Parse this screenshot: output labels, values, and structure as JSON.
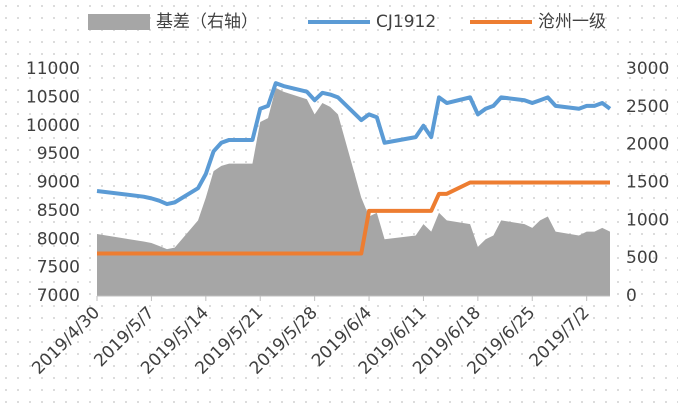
{
  "chart_data": {
    "type": "line",
    "x": [
      "2019/4/30",
      "2019/5/6",
      "2019/5/7",
      "2019/5/8",
      "2019/5/9",
      "2019/5/10",
      "2019/5/13",
      "2019/5/14",
      "2019/5/15",
      "2019/5/16",
      "2019/5/17",
      "2019/5/20",
      "2019/5/21",
      "2019/5/22",
      "2019/5/23",
      "2019/5/24",
      "2019/5/27",
      "2019/5/28",
      "2019/5/29",
      "2019/5/30",
      "2019/5/31",
      "2019/6/3",
      "2019/6/4",
      "2019/6/5",
      "2019/6/6",
      "2019/6/10",
      "2019/6/11",
      "2019/6/12",
      "2019/6/13",
      "2019/6/14",
      "2019/6/17",
      "2019/6/18",
      "2019/6/19",
      "2019/6/20",
      "2019/6/21",
      "2019/6/24",
      "2019/6/25",
      "2019/6/26",
      "2019/6/27",
      "2019/6/28",
      "2019/7/1",
      "2019/7/2",
      "2019/7/3",
      "2019/7/4",
      "2019/7/5"
    ],
    "series": [
      {
        "name": "基差（右轴）",
        "color": "#a6a6a6",
        "kind": "area",
        "axis": "y2",
        "values": [
          820,
          720,
          700,
          660,
          620,
          640,
          1000,
          1300,
          1650,
          1720,
          1750,
          1750,
          2300,
          2350,
          2750,
          2700,
          2600,
          2400,
          2550,
          2500,
          2400,
          1300,
          1050,
          1100,
          750,
          800,
          950,
          850,
          1100,
          1000,
          950,
          650,
          750,
          800,
          1000,
          950,
          900,
          1000,
          1050,
          850,
          800,
          850,
          850,
          900,
          850
        ]
      },
      {
        "name": "CJ1912",
        "color": "#5b9bd5",
        "kind": "line",
        "values": [
          8850,
          8750,
          8720,
          8680,
          8620,
          8650,
          8900,
          9150,
          9550,
          9700,
          9750,
          9750,
          10300,
          10350,
          10750,
          10700,
          10600,
          10450,
          10580,
          10550,
          10500,
          10100,
          10200,
          10150,
          9700,
          9800,
          10000,
          9800,
          10500,
          10400,
          10500,
          10200,
          10300,
          10350,
          10500,
          10450,
          10400,
          10450,
          10500,
          10350,
          10300,
          10350,
          10350,
          10400,
          10300
        ]
      },
      {
        "name": "沧州一级",
        "color": "#ed7d31",
        "kind": "line",
        "values": [
          7750,
          7750,
          7750,
          7750,
          7750,
          7750,
          7750,
          7750,
          7750,
          7750,
          7750,
          7750,
          7750,
          7750,
          7750,
          7750,
          7750,
          7750,
          7750,
          7750,
          7750,
          7750,
          8500,
          8500,
          8500,
          8500,
          8500,
          8500,
          8800,
          8800,
          9000,
          9000,
          9000,
          9000,
          9000,
          9000,
          9000,
          9000,
          9000,
          9000,
          9000,
          9000,
          9000,
          9000,
          9000
        ]
      }
    ],
    "xlim": [
      "2019/4/30",
      "2019/7/5"
    ],
    "xticks": [
      "2019/4/30",
      "2019/5/7",
      "2019/5/14",
      "2019/5/21",
      "2019/5/28",
      "2019/6/4",
      "2019/6/11",
      "2019/6/18",
      "2019/6/25",
      "2019/7/2"
    ],
    "ylim": [
      7000,
      11000
    ],
    "yticks": [
      7000,
      7500,
      8000,
      8500,
      9000,
      9500,
      10000,
      10500,
      11000
    ],
    "y2lim": [
      0,
      3000
    ],
    "y2ticks": [
      0,
      500,
      1000,
      1500,
      2000,
      2500,
      3000
    ],
    "legend": "top"
  }
}
